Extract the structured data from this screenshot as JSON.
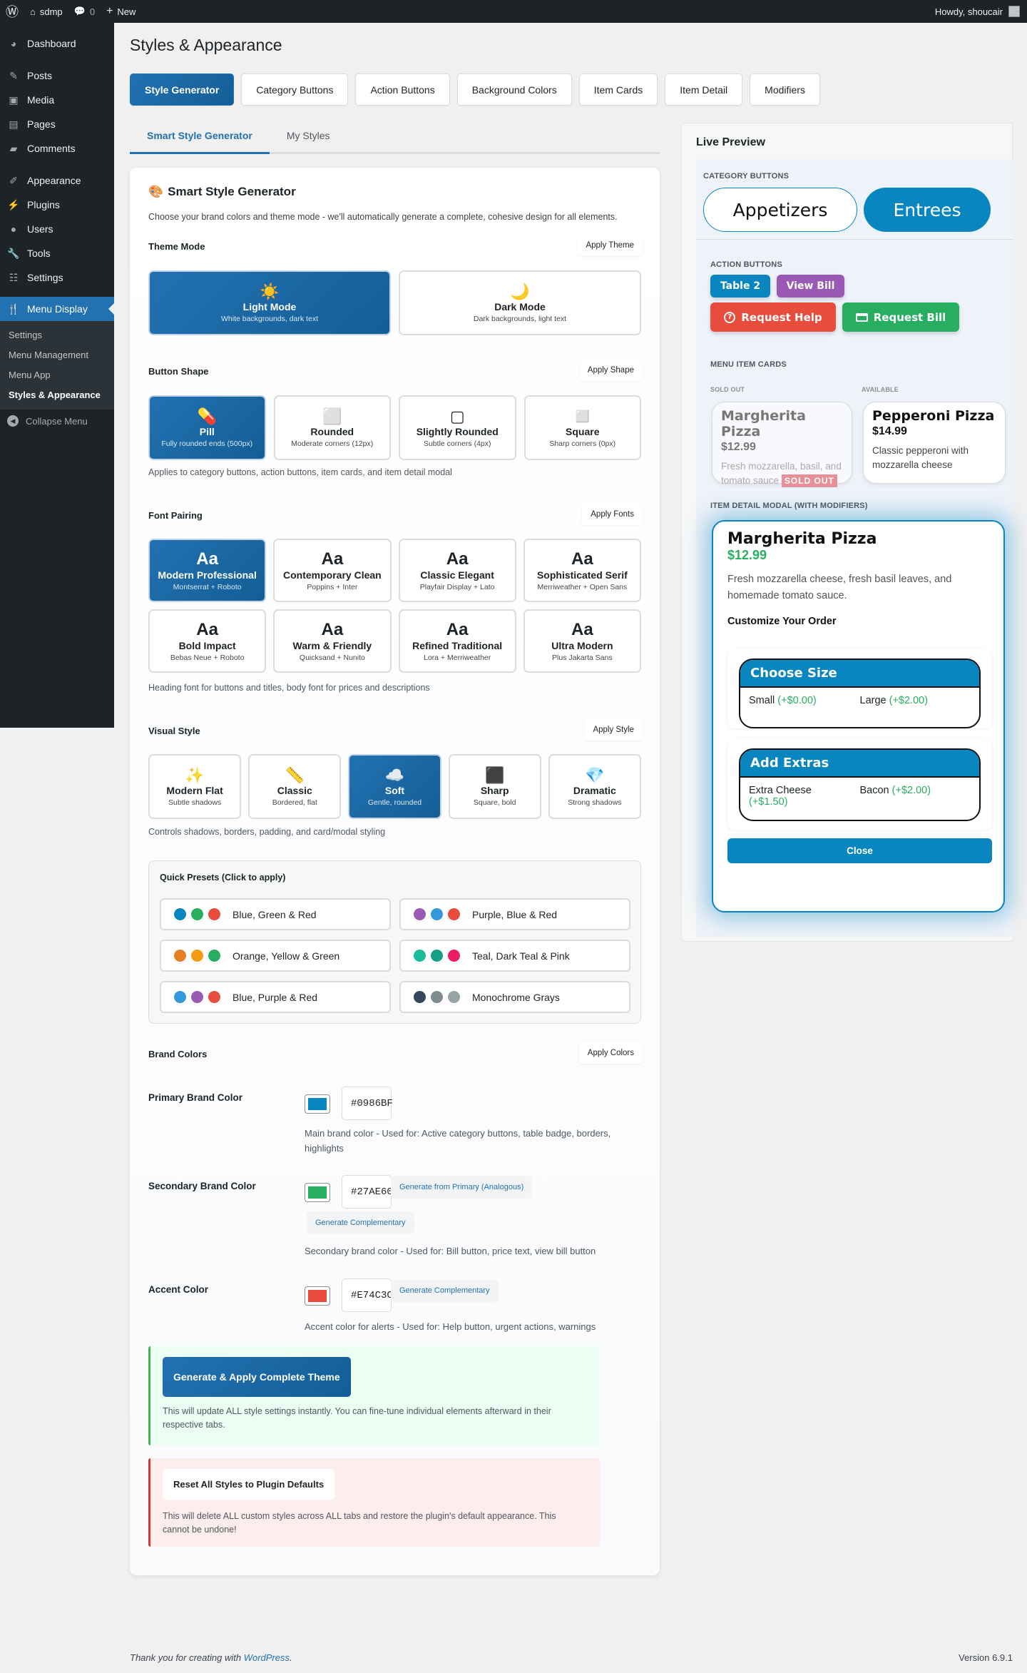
{
  "adminbar": {
    "site": "sdmp",
    "comments": "0",
    "new": "New",
    "howdy": "Howdy, shoucair"
  },
  "sidebar": {
    "items": [
      {
        "label": "Dashboard",
        "icon": "dashboard-icon"
      },
      {
        "label": "Posts",
        "icon": "pin-icon"
      },
      {
        "label": "Media",
        "icon": "media-icon"
      },
      {
        "label": "Pages",
        "icon": "pages-icon"
      },
      {
        "label": "Comments",
        "icon": "comment-icon"
      },
      {
        "label": "Appearance",
        "icon": "brush-icon"
      },
      {
        "label": "Plugins",
        "icon": "plugin-icon"
      },
      {
        "label": "Users",
        "icon": "user-icon"
      },
      {
        "label": "Tools",
        "icon": "wrench-icon"
      },
      {
        "label": "Settings",
        "icon": "settings-icon"
      },
      {
        "label": "Menu Display",
        "icon": "utensils-icon"
      }
    ],
    "submenu": [
      "Settings",
      "Menu Management",
      "Menu App",
      "Styles & Appearance"
    ],
    "collapse": "Collapse Menu"
  },
  "page": {
    "title": "Styles & Appearance"
  },
  "tabs": [
    "Style Generator",
    "Category Buttons",
    "Action Buttons",
    "Background Colors",
    "Item Cards",
    "Item Detail",
    "Modifiers"
  ],
  "subtabs": [
    "Smart Style Generator",
    "My Styles"
  ],
  "generator": {
    "title": "Smart Style Generator",
    "icon": "🎨",
    "description": "Choose your brand colors and theme mode - we'll automatically generate a complete, cohesive design for all elements.",
    "theme": {
      "label": "Theme Mode",
      "apply": "Apply Theme",
      "options": [
        {
          "icon": "☀️",
          "title": "Light Mode",
          "sub": "White backgrounds, dark text",
          "selected": true
        },
        {
          "icon": "🌙",
          "title": "Dark Mode",
          "sub": "Dark backgrounds, light text",
          "selected": false
        }
      ]
    },
    "shape": {
      "label": "Button Shape",
      "apply": "Apply Shape",
      "note": "Applies to category buttons, action buttons, item cards, and item detail modal",
      "options": [
        {
          "icon": "💊",
          "title": "Pill",
          "sub": "Fully rounded ends (500px)",
          "selected": true
        },
        {
          "icon": "⬜",
          "title": "Rounded",
          "sub": "Moderate corners (12px)"
        },
        {
          "icon": "▢",
          "title": "Slightly Rounded",
          "sub": "Subtle corners (4px)"
        },
        {
          "icon": "◻️",
          "title": "Square",
          "sub": "Sharp corners (0px)"
        }
      ]
    },
    "fonts": {
      "label": "Font Pairing",
      "apply": "Apply Fonts",
      "sample": "Aa",
      "note": "Heading font for buttons and titles, body font for prices and descriptions",
      "options": [
        {
          "title": "Modern Professional",
          "sub": "Montserrat + Roboto",
          "selected": true
        },
        {
          "title": "Contemporary Clean",
          "sub": "Poppins + Inter"
        },
        {
          "title": "Classic Elegant",
          "sub": "Playfair Display + Lato"
        },
        {
          "title": "Sophisticated Serif",
          "sub": "Merriweather + Open Sans"
        },
        {
          "title": "Bold Impact",
          "sub": "Bebas Neue + Roboto"
        },
        {
          "title": "Warm & Friendly",
          "sub": "Quicksand + Nunito"
        },
        {
          "title": "Refined Traditional",
          "sub": "Lora + Merriweather"
        },
        {
          "title": "Ultra Modern",
          "sub": "Plus Jakarta Sans"
        }
      ]
    },
    "visual": {
      "label": "Visual Style",
      "apply": "Apply Style",
      "note": "Controls shadows, borders, padding, and card/modal styling",
      "options": [
        {
          "icon": "✨",
          "title": "Modern Flat",
          "sub": "Subtle shadows"
        },
        {
          "icon": "📏",
          "title": "Classic",
          "sub": "Bordered, flat"
        },
        {
          "icon": "☁️",
          "title": "Soft",
          "sub": "Gentle, rounded",
          "selected": true
        },
        {
          "icon": "⬛",
          "title": "Sharp",
          "sub": "Square, bold"
        },
        {
          "icon": "💎",
          "title": "Dramatic",
          "sub": "Strong shadows"
        }
      ]
    },
    "presets": {
      "title": "Quick Presets (Click to apply)",
      "items": [
        {
          "label": "Blue, Green & Red",
          "colors": [
            "#0986bf",
            "#27ae60",
            "#e74c3c"
          ]
        },
        {
          "label": "Purple, Blue & Red",
          "colors": [
            "#9b59b6",
            "#3498db",
            "#e74c3c"
          ]
        },
        {
          "label": "Orange, Yellow & Green",
          "colors": [
            "#e67e22",
            "#f39c12",
            "#27ae60"
          ]
        },
        {
          "label": "Teal, Dark Teal & Pink",
          "colors": [
            "#1abc9c",
            "#16a085",
            "#e91e63"
          ]
        },
        {
          "label": "Blue, Purple & Red",
          "colors": [
            "#3498db",
            "#9b59b6",
            "#e74c3c"
          ]
        },
        {
          "label": "Monochrome Grays",
          "colors": [
            "#34495e",
            "#7f8c8d",
            "#95a5a6"
          ]
        }
      ]
    },
    "brand": {
      "label": "Brand Colors",
      "apply": "Apply Colors",
      "primary": {
        "label": "Primary Brand Color",
        "value": "#0986BF",
        "desc": "Main brand color - Used for: Active category buttons, table badge, borders, highlights"
      },
      "secondary": {
        "label": "Secondary Brand Color",
        "value": "#27AE60",
        "gen1": "Generate from Primary (Analogous)",
        "gen2": "Generate Complementary",
        "desc": "Secondary brand color - Used for: Bill button, price text, view bill button"
      },
      "accent": {
        "label": "Accent Color",
        "value": "#E74C3C",
        "gen": "Generate Complementary",
        "desc": "Accent color for alerts - Used for: Help button, urgent actions, warnings"
      }
    },
    "apply_all": {
      "button": "Generate & Apply Complete Theme",
      "note": "This will update ALL style settings instantly. You can fine-tune individual elements afterward in their respective tabs."
    },
    "reset": {
      "button": "Reset All Styles to Plugin Defaults",
      "note": "This will delete ALL custom styles across ALL tabs and restore the plugin's default appearance. This cannot be undone!"
    }
  },
  "preview": {
    "title": "Live Preview",
    "category_label": "CATEGORY BUTTONS",
    "categories": [
      "Appetizers",
      "Entrees"
    ],
    "action_label": "ACTION BUTTONS",
    "table": "Table 2",
    "view_bill": "View Bill",
    "request_help": "Request Help",
    "request_bill": "Request Bill",
    "cards_label": "MENU ITEM CARDS",
    "cards": [
      {
        "status": "SOLD OUT",
        "name": "Margherita Pizza",
        "price": "$12.99",
        "desc": "Fresh mozzarella, basil, and tomato sauce",
        "badge": "SOLD OUT"
      },
      {
        "status": "AVAILABLE",
        "name": "Pepperoni Pizza",
        "price": "$14.99",
        "desc": "Classic pepperoni with mozzarella cheese"
      }
    ],
    "modal_label": "ITEM DETAIL MODAL (WITH MODIFIERS)",
    "modal": {
      "name": "Margherita Pizza",
      "price": "$12.99",
      "desc": "Fresh mozzarella cheese, fresh basil leaves, and homemade tomato sauce.",
      "customize": "Customize Your Order",
      "groups": [
        {
          "title": "Choose Size",
          "options": [
            {
              "name": "Small",
              "price": "(+$0.00)"
            },
            {
              "name": "Large",
              "price": "(+$2.00)"
            }
          ]
        },
        {
          "title": "Add Extras",
          "options": [
            {
              "name": "Extra Cheese",
              "price": "(+$1.50)"
            },
            {
              "name": "Bacon",
              "price": "(+$2.00)"
            }
          ]
        }
      ],
      "close": "Close"
    }
  },
  "footer": {
    "text": "Thank you for creating with ",
    "link": "WordPress",
    "end": ".",
    "version": "Version 6.9.1"
  },
  "colors": {
    "primary": "#0986BF",
    "secondary": "#27AE60",
    "accent": "#E74C3C",
    "wp_blue": "#2271b1",
    "view_bill": "#9b59b6"
  }
}
